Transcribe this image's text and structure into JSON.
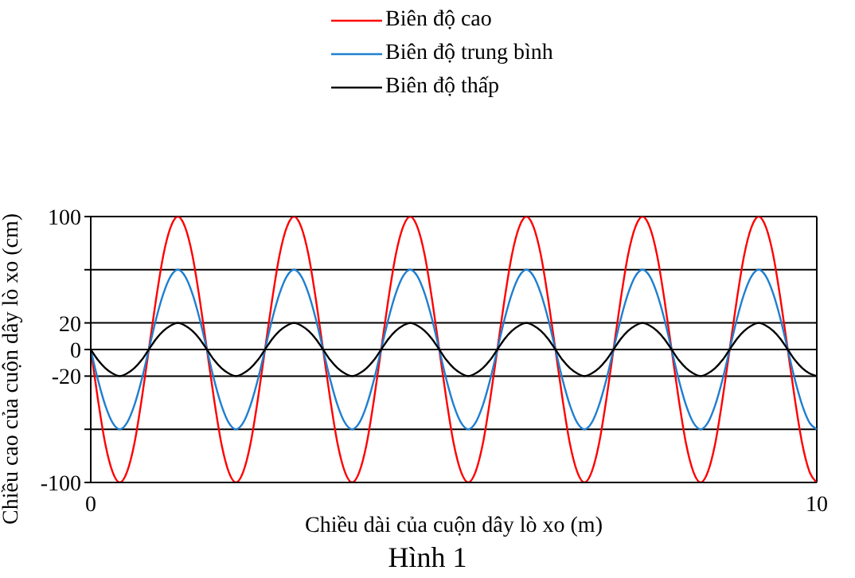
{
  "chart_data": {
    "type": "line",
    "xlabel": "Chiều dài của cuộn dây lò xo (m)",
    "ylabel": "Chiều cao của cuộn dây lò xo (cm)",
    "annotations": [
      "Hình 1"
    ],
    "x": [
      0,
      0.1,
      0.2,
      0.3,
      0.4,
      0.5,
      0.6,
      0.7,
      0.8,
      0.9,
      1,
      1.1,
      1.2,
      1.3,
      1.4,
      1.5,
      1.6,
      1.7,
      1.8,
      1.9,
      2,
      2.1,
      2.2,
      2.3,
      2.4,
      2.5,
      2.6,
      2.7,
      2.8,
      2.9,
      3,
      3.1,
      3.2,
      3.3,
      3.4,
      3.5,
      3.6,
      3.7,
      3.8,
      3.9,
      4,
      4.1,
      4.2,
      4.3,
      4.4,
      4.5,
      4.6,
      4.7,
      4.8,
      4.9,
      5,
      5.1,
      5.2,
      5.3,
      5.4,
      5.5,
      5.6,
      5.7,
      5.8,
      5.9,
      6,
      6.1,
      6.2,
      6.3,
      6.4,
      6.5,
      6.6,
      6.7,
      6.8,
      6.9,
      7,
      7.1,
      7.2,
      7.3,
      7.4,
      7.5,
      7.6,
      7.7,
      7.8,
      7.9,
      8,
      8.1,
      8.2,
      8.3,
      8.4,
      8.5,
      8.6,
      8.7,
      8.8,
      8.9,
      9,
      9.1,
      9.2,
      9.3,
      9.4,
      9.5,
      9.6,
      9.7,
      9.8,
      9.9,
      10
    ],
    "series": [
      {
        "name": "Biên độ cao",
        "color": "#ff0000",
        "values": [
          0,
          -38,
          -71,
          -92,
          -100,
          -92,
          -71,
          -38,
          0,
          38,
          71,
          92,
          100,
          92,
          71,
          38,
          0,
          -38,
          -71,
          -92,
          -100,
          -92,
          -71,
          -38,
          0,
          38,
          71,
          92,
          100,
          92,
          71,
          38,
          0,
          -38,
          -71,
          -92,
          -100,
          -92,
          -71,
          -38,
          0,
          38,
          71,
          92,
          100,
          92,
          71,
          38,
          0,
          -38,
          -71,
          -92,
          -100,
          -92,
          -71,
          -38,
          0,
          38,
          71,
          92,
          100,
          92,
          71,
          38,
          0,
          -38,
          -71,
          -92,
          -100,
          -92,
          -71,
          -38,
          0,
          38,
          71,
          92,
          100,
          92,
          71,
          38,
          0,
          -38,
          -71,
          -92,
          -100,
          -92,
          -71,
          -38,
          0,
          38,
          71,
          92,
          100,
          92,
          71,
          38,
          0,
          -38,
          -71,
          -92,
          -100
        ]
      },
      {
        "name": "Biên độ trung bình",
        "color": "#1f7fd0",
        "values": [
          0,
          -23,
          -42,
          -55,
          -60,
          -55,
          -42,
          -23,
          0,
          23,
          42,
          55,
          60,
          55,
          42,
          23,
          0,
          -23,
          -42,
          -55,
          -60,
          -55,
          -42,
          -23,
          0,
          23,
          42,
          55,
          60,
          55,
          42,
          23,
          0,
          -23,
          -42,
          -55,
          -60,
          -55,
          -42,
          -23,
          0,
          23,
          42,
          55,
          60,
          55,
          42,
          23,
          0,
          -23,
          -42,
          -55,
          -60,
          -55,
          -42,
          -23,
          0,
          23,
          42,
          55,
          60,
          55,
          42,
          23,
          0,
          -23,
          -42,
          -55,
          -60,
          -55,
          -42,
          -23,
          0,
          23,
          42,
          55,
          60,
          55,
          42,
          23,
          0,
          -23,
          -42,
          -55,
          -60,
          -55,
          -42,
          -23,
          0,
          23,
          42,
          55,
          60,
          55,
          42,
          23,
          0,
          -23,
          -42,
          -55,
          -60
        ]
      },
      {
        "name": "Biên độ thấp",
        "color": "#000000",
        "values": [
          0,
          -8,
          -14,
          -18,
          -20,
          -18,
          -14,
          -8,
          0,
          8,
          14,
          18,
          20,
          18,
          14,
          8,
          0,
          -8,
          -14,
          -18,
          -20,
          -18,
          -14,
          -8,
          0,
          8,
          14,
          18,
          20,
          18,
          14,
          8,
          0,
          -8,
          -14,
          -18,
          -20,
          -18,
          -14,
          -8,
          0,
          8,
          14,
          18,
          20,
          18,
          14,
          8,
          0,
          -8,
          -14,
          -18,
          -20,
          -18,
          -14,
          -8,
          0,
          8,
          14,
          18,
          20,
          18,
          14,
          8,
          0,
          -8,
          -14,
          -18,
          -20,
          -18,
          -14,
          -8,
          0,
          8,
          14,
          18,
          20,
          18,
          14,
          8,
          0,
          -8,
          -14,
          -18,
          -20,
          -18,
          -14,
          -8,
          0,
          8,
          14,
          18,
          20,
          18,
          14,
          8,
          0,
          -8,
          -14,
          -18,
          -20
        ]
      }
    ],
    "xlim": [
      0,
      10
    ],
    "xticks": [
      0,
      10
    ],
    "ylim": [
      -100,
      100
    ],
    "yticks": [
      -100,
      {
        "value": -60,
        "label": null
      },
      -20,
      0,
      20,
      {
        "value": 60,
        "label": null
      },
      100
    ],
    "grid": true,
    "legend": "top",
    "marker": "none",
    "line_style": "solid"
  }
}
